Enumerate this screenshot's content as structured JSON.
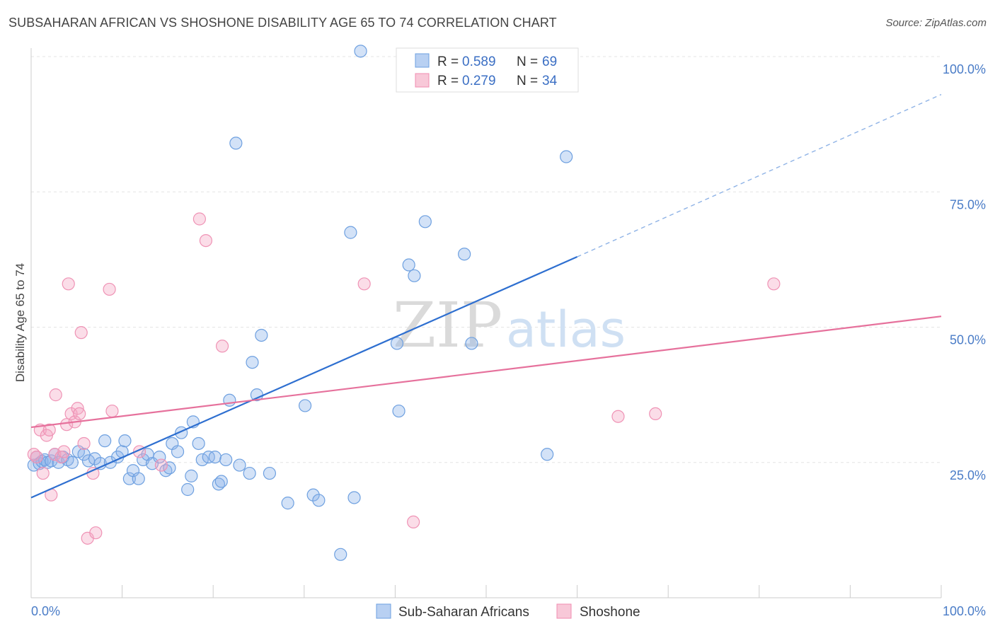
{
  "header": {
    "title": "SUBSAHARAN AFRICAN VS SHOSHONE DISABILITY AGE 65 TO 74 CORRELATION CHART",
    "source": "Source: ZipAtlas.com"
  },
  "watermark": {
    "zip": "ZIP",
    "atlas": "atlas"
  },
  "legend": {
    "rows": [
      {
        "r_label": "R =",
        "r_value": "0.589",
        "n_label": "N =",
        "n_value": "69",
        "color": "#6ea0e0"
      },
      {
        "r_label": "R =",
        "r_value": "0.279",
        "n_label": "N =",
        "n_value": "34",
        "color": "#f08cb0"
      }
    ]
  },
  "bottom_legend": [
    {
      "label": "Sub-Saharan Africans",
      "color": "#6ea0e0"
    },
    {
      "label": "Shoshone",
      "color": "#f08cb0"
    }
  ],
  "chart_data": {
    "type": "scatter",
    "ylabel": "Disability Age 65 to 74",
    "xlim": [
      0,
      100
    ],
    "ylim": [
      0,
      100
    ],
    "x_tick_labels": [
      "0.0%",
      "100.0%"
    ],
    "y_tick_labels": [
      "25.0%",
      "50.0%",
      "75.0%",
      "100.0%"
    ],
    "y_ticks": [
      25,
      50,
      75,
      100
    ],
    "grid": true,
    "legend_placement": "top-center",
    "series": [
      {
        "name": "Sub-Saharan Africans",
        "color": "#6ea0e0",
        "trend": {
          "x0": 0,
          "y0": 18.5,
          "x1": 60,
          "y1": 63,
          "dash_to_x": 100,
          "dash_to_y": 93
        },
        "points": [
          [
            0.3,
            24.5
          ],
          [
            0.6,
            26
          ],
          [
            0.9,
            24.8
          ],
          [
            1.2,
            25.2
          ],
          [
            1.5,
            25.5
          ],
          [
            1.8,
            25
          ],
          [
            2.2,
            25.3
          ],
          [
            2.6,
            26.5
          ],
          [
            3,
            25
          ],
          [
            3.5,
            26
          ],
          [
            4,
            25.5
          ],
          [
            4.5,
            25
          ],
          [
            5.2,
            27
          ],
          [
            5.8,
            26.5
          ],
          [
            6.3,
            25.3
          ],
          [
            7,
            25.7
          ],
          [
            7.6,
            24.8
          ],
          [
            8.1,
            29
          ],
          [
            8.7,
            25
          ],
          [
            9.5,
            26
          ],
          [
            10,
            27
          ],
          [
            10.3,
            29
          ],
          [
            10.8,
            22
          ],
          [
            11.2,
            23.5
          ],
          [
            11.8,
            22
          ],
          [
            12.3,
            25.5
          ],
          [
            12.8,
            26.5
          ],
          [
            13.3,
            24.8
          ],
          [
            14.1,
            26
          ],
          [
            14.8,
            23.5
          ],
          [
            15.2,
            24
          ],
          [
            15.5,
            28.5
          ],
          [
            16.1,
            27
          ],
          [
            16.5,
            30.5
          ],
          [
            17.2,
            20
          ],
          [
            17.6,
            22.5
          ],
          [
            17.8,
            32.5
          ],
          [
            18.4,
            28.5
          ],
          [
            18.8,
            25.5
          ],
          [
            19.5,
            26
          ],
          [
            20.2,
            26
          ],
          [
            20.6,
            21
          ],
          [
            20.9,
            21.5
          ],
          [
            21.4,
            25.5
          ],
          [
            21.8,
            36.5
          ],
          [
            22.5,
            84
          ],
          [
            22.9,
            24.5
          ],
          [
            24,
            23
          ],
          [
            24.3,
            43.5
          ],
          [
            24.8,
            37.5
          ],
          [
            25.3,
            48.5
          ],
          [
            26.2,
            23
          ],
          [
            28.2,
            17.5
          ],
          [
            30.1,
            35.5
          ],
          [
            31,
            19
          ],
          [
            31.6,
            18
          ],
          [
            34,
            8
          ],
          [
            35.1,
            67.5
          ],
          [
            35.5,
            18.5
          ],
          [
            36.2,
            101
          ],
          [
            40.2,
            47
          ],
          [
            40.4,
            34.5
          ],
          [
            41.5,
            61.5
          ],
          [
            42.1,
            59.5
          ],
          [
            43.3,
            69.5
          ],
          [
            47.6,
            63.5
          ],
          [
            48.4,
            47
          ],
          [
            56.7,
            26.5
          ],
          [
            58.8,
            81.5
          ]
        ]
      },
      {
        "name": "Shoshone",
        "color": "#f08cb0",
        "trend": {
          "x0": 0,
          "y0": 31.5,
          "x1": 100,
          "y1": 52
        },
        "points": [
          [
            0.3,
            26.5
          ],
          [
            0.6,
            26
          ],
          [
            1,
            31
          ],
          [
            1.3,
            23
          ],
          [
            1.7,
            30
          ],
          [
            2,
            31
          ],
          [
            2.2,
            19
          ],
          [
            2.6,
            26.5
          ],
          [
            2.7,
            37.5
          ],
          [
            3.3,
            26
          ],
          [
            3.6,
            27
          ],
          [
            3.9,
            32
          ],
          [
            4.1,
            58
          ],
          [
            4.4,
            34
          ],
          [
            4.8,
            32.5
          ],
          [
            5.1,
            35
          ],
          [
            5.3,
            34
          ],
          [
            5.5,
            49
          ],
          [
            5.8,
            28.5
          ],
          [
            6.2,
            11
          ],
          [
            6.8,
            23
          ],
          [
            7.1,
            12
          ],
          [
            8.6,
            57
          ],
          [
            8.9,
            34.5
          ],
          [
            11.9,
            27
          ],
          [
            14.3,
            24.5
          ],
          [
            18.5,
            70
          ],
          [
            19.2,
            66
          ],
          [
            21,
            46.5
          ],
          [
            36.6,
            58
          ],
          [
            42,
            14
          ],
          [
            64.5,
            33.5
          ],
          [
            68.6,
            34
          ],
          [
            81.6,
            58
          ]
        ]
      }
    ]
  }
}
